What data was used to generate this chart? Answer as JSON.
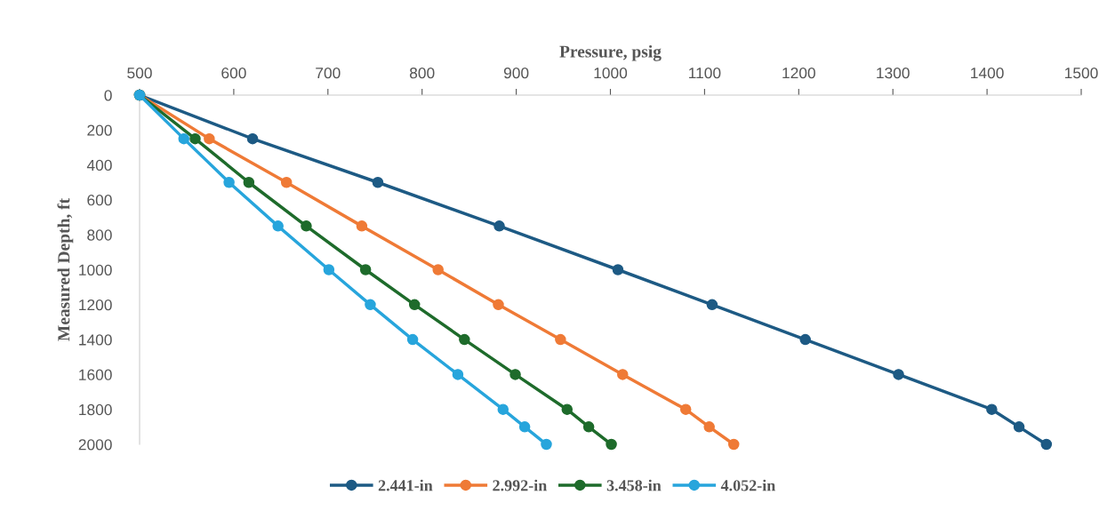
{
  "chart_data": {
    "type": "line",
    "xlabel": "Pressure, psig",
    "ylabel": "Measured Depth, ft",
    "series": [
      {
        "name": "2.441-in",
        "color": "#1d5a84",
        "x": [
          500,
          620,
          753,
          882,
          1008,
          1108,
          1207,
          1306,
          1405,
          1434,
          1463
        ],
        "values": [
          0,
          250,
          500,
          750,
          1000,
          1200,
          1400,
          1600,
          1800,
          1900,
          2000
        ]
      },
      {
        "name": "2.992-in",
        "color": "#ef7a36",
        "x": [
          500,
          574,
          656,
          736,
          817,
          881,
          947,
          1013,
          1080,
          1105,
          1131
        ],
        "values": [
          0,
          250,
          500,
          750,
          1000,
          1200,
          1400,
          1600,
          1800,
          1900,
          2000
        ]
      },
      {
        "name": "3.458-in",
        "color": "#1e6b2b",
        "x": [
          500,
          559,
          616,
          677,
          740,
          792,
          845,
          899,
          954,
          977,
          1001
        ],
        "values": [
          0,
          250,
          500,
          750,
          1000,
          1200,
          1400,
          1600,
          1800,
          1900,
          2000
        ]
      },
      {
        "name": "4.052-in",
        "color": "#27a5dc",
        "x": [
          500,
          547,
          595,
          647,
          701,
          745,
          790,
          838,
          886,
          909,
          932
        ],
        "values": [
          0,
          250,
          500,
          750,
          1000,
          1200,
          1400,
          1600,
          1800,
          1900,
          2000
        ]
      }
    ],
    "xlim": [
      500,
      1500
    ],
    "xticks": [
      500,
      600,
      700,
      800,
      900,
      1000,
      1100,
      1200,
      1300,
      1400,
      1500
    ],
    "ylim": [
      2000,
      0
    ],
    "yticks": [
      0,
      200,
      400,
      600,
      800,
      1000,
      1200,
      1400,
      1600,
      1800,
      2000
    ],
    "grid": false,
    "legend": "bottom",
    "marker": "circle",
    "line_style": "solid"
  }
}
